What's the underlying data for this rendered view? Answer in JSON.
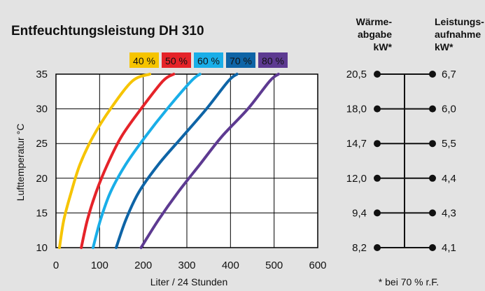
{
  "chart_data": {
    "type": "line",
    "title": "Entfeuchtungsleistung DH 310",
    "xlabel": "Liter / 24 Stunden",
    "ylabel": "Lufttemperatur °C",
    "xlim": [
      0,
      600
    ],
    "ylim": [
      10,
      35
    ],
    "x_ticks": [
      "0",
      "100",
      "200",
      "300",
      "400",
      "500",
      "600"
    ],
    "y_ticks": [
      "10",
      "15",
      "20",
      "25",
      "30",
      "35"
    ],
    "grid": true,
    "legend_position": "top",
    "series": [
      {
        "name": "40 %",
        "color": "#f6c400",
        "points": [
          [
            8,
            10
          ],
          [
            18,
            14
          ],
          [
            35,
            18
          ],
          [
            55,
            22
          ],
          [
            85,
            26
          ],
          [
            125,
            30
          ],
          [
            175,
            34
          ],
          [
            215,
            35
          ]
        ]
      },
      {
        "name": "50 %",
        "color": "#e52329",
        "points": [
          [
            58,
            10
          ],
          [
            72,
            14
          ],
          [
            92,
            18
          ],
          [
            118,
            22
          ],
          [
            150,
            26
          ],
          [
            195,
            30
          ],
          [
            245,
            34
          ],
          [
            270,
            35
          ]
        ]
      },
      {
        "name": "60 %",
        "color": "#19aee8",
        "points": [
          [
            85,
            10
          ],
          [
            102,
            14
          ],
          [
            125,
            18
          ],
          [
            160,
            22
          ],
          [
            205,
            26
          ],
          [
            255,
            30
          ],
          [
            310,
            34
          ],
          [
            330,
            35
          ]
        ]
      },
      {
        "name": "70 %",
        "color": "#0e64a6",
        "points": [
          [
            138,
            10
          ],
          [
            160,
            14
          ],
          [
            190,
            18
          ],
          [
            235,
            22
          ],
          [
            290,
            26
          ],
          [
            345,
            30
          ],
          [
            395,
            34
          ],
          [
            415,
            35
          ]
        ]
      },
      {
        "name": "80 %",
        "color": "#5d3a91",
        "points": [
          [
            195,
            10
          ],
          [
            235,
            14
          ],
          [
            280,
            18
          ],
          [
            330,
            22
          ],
          [
            380,
            26
          ],
          [
            440,
            30
          ],
          [
            490,
            34
          ],
          [
            510,
            35
          ]
        ]
      }
    ],
    "right_panel": {
      "header_left": [
        "Wärme-",
        "abgabe",
        "kW*"
      ],
      "header_right": [
        "Leistungs-",
        "aufnahme",
        "kW*"
      ],
      "waerme_kw": [
        "20,5",
        "18,0",
        "14,7",
        "12,0",
        "9,4",
        "8,2"
      ],
      "leistung_kw": [
        "6,7",
        "6,0",
        "5,5",
        "4,4",
        "4,3",
        "4,1"
      ],
      "footnote": "* bei 70 % r.F."
    }
  }
}
